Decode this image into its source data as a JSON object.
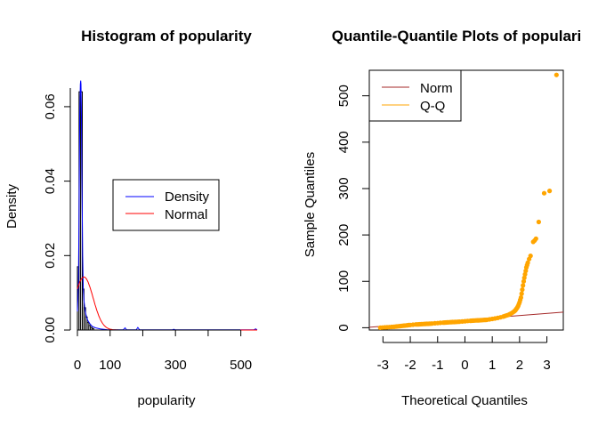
{
  "chart_data": [
    {
      "type": "bar",
      "title": "Histogram of popularity",
      "xlabel": "popularity",
      "ylabel": "Density",
      "xlim": [
        0,
        550
      ],
      "ylim": [
        0,
        0.065
      ],
      "x_ticks": [
        0,
        100,
        300,
        500
      ],
      "y_ticks": [
        0.0,
        0.02,
        0.04,
        0.06
      ],
      "y_tick_labels": [
        "0.00",
        "0.02",
        "0.04",
        "0.06"
      ],
      "bin_width": 5,
      "bins": [
        {
          "x0": 0,
          "x1": 5,
          "density": 0.017
        },
        {
          "x0": 5,
          "x1": 10,
          "density": 0.064
        },
        {
          "x0": 10,
          "x1": 15,
          "density": 0.064
        },
        {
          "x0": 15,
          "x1": 20,
          "density": 0.011
        },
        {
          "x0": 20,
          "x1": 25,
          "density": 0.006
        },
        {
          "x0": 25,
          "x1": 30,
          "density": 0.0035
        },
        {
          "x0": 30,
          "x1": 35,
          "density": 0.002
        },
        {
          "x0": 35,
          "x1": 40,
          "density": 0.0012
        },
        {
          "x0": 40,
          "x1": 45,
          "density": 0.0007
        },
        {
          "x0": 45,
          "x1": 50,
          "density": 0.0004
        }
      ],
      "series": [
        {
          "name": "Density",
          "color": "#0000ff",
          "x": [
            0,
            3,
            5,
            7,
            9,
            10,
            11,
            12,
            14,
            16,
            18,
            20,
            24,
            28,
            32,
            38,
            45,
            55,
            70,
            90,
            120,
            140,
            146,
            150,
            170,
            180,
            185,
            190,
            220,
            280,
            290,
            295,
            300,
            350,
            400,
            450,
            500,
            540,
            545,
            550
          ],
          "y": [
            0.005,
            0.012,
            0.03,
            0.058,
            0.066,
            0.067,
            0.066,
            0.06,
            0.04,
            0.02,
            0.011,
            0.008,
            0.005,
            0.0035,
            0.0025,
            0.0017,
            0.001,
            0.0006,
            0.0003,
            0.0001,
            5e-05,
            5e-05,
            0.0006,
            5e-05,
            5e-05,
            5e-05,
            0.0007,
            5e-05,
            5e-05,
            5e-05,
            5e-05,
            0.0002,
            5e-05,
            5e-05,
            5e-05,
            5e-05,
            5e-05,
            5e-05,
            0.0003,
            5e-05
          ]
        },
        {
          "name": "Normal",
          "color": "#ff0000",
          "mean": 20,
          "sd": 28
        }
      ],
      "legend": {
        "placement": "center-right",
        "entries": [
          {
            "label": "Density",
            "color": "#0000ff"
          },
          {
            "label": "Normal",
            "color": "#ff0000"
          }
        ]
      }
    },
    {
      "type": "scatter",
      "title": "Quantile-Quantile Plots of populari",
      "xlabel": "Theoretical Quantiles",
      "ylabel": "Sample Quantiles",
      "xlim": [
        -3.5,
        3.6
      ],
      "ylim": [
        -5,
        555
      ],
      "x_ticks": [
        -3,
        -2,
        -1,
        0,
        1,
        2,
        3
      ],
      "y_ticks": [
        0,
        100,
        200,
        300,
        400,
        500
      ],
      "point_color": "#ffa500",
      "line": {
        "name": "Norm",
        "color": "#a52a2a",
        "intercept": 17,
        "slope": 4.6
      },
      "legend": {
        "placement": "top-left",
        "entries": [
          {
            "label": "Norm",
            "color": "#a52a2a"
          },
          {
            "label": "Q-Q",
            "color": "#ffa500"
          }
        ]
      },
      "points": {
        "x": [
          -3.1,
          -2.6,
          -2.3,
          -2.0,
          -1.8,
          -1.5,
          -1.2,
          -1.0,
          -0.8,
          -0.5,
          -0.2,
          0.0,
          0.2,
          0.5,
          0.8,
          1.0,
          1.2,
          1.4,
          1.5,
          1.6,
          1.7,
          1.8,
          1.85,
          1.9,
          1.95,
          2.0,
          2.05,
          2.1,
          2.15,
          2.2,
          2.25,
          2.3,
          2.35,
          2.4,
          2.5,
          2.55,
          2.6,
          2.7,
          2.9,
          3.1,
          3.35
        ],
        "y": [
          0,
          2,
          4,
          6,
          7,
          8,
          9,
          10,
          11,
          12,
          13,
          14,
          15,
          16,
          17,
          19,
          21,
          24,
          26,
          28,
          31,
          35,
          38,
          42,
          47,
          55,
          65,
          82,
          100,
          115,
          130,
          140,
          148,
          155,
          185,
          188,
          192,
          228,
          290,
          295,
          545
        ]
      }
    }
  ]
}
